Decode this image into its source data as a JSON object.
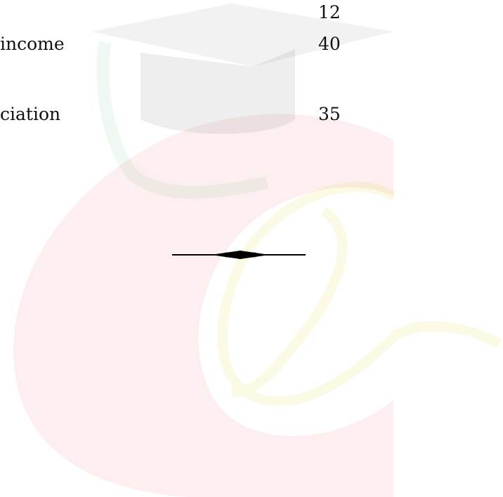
{
  "rows": [
    {
      "value": 12
    },
    {
      "label": "income",
      "value": 40
    },
    {
      "label": "ciation",
      "value": 35
    }
  ]
}
